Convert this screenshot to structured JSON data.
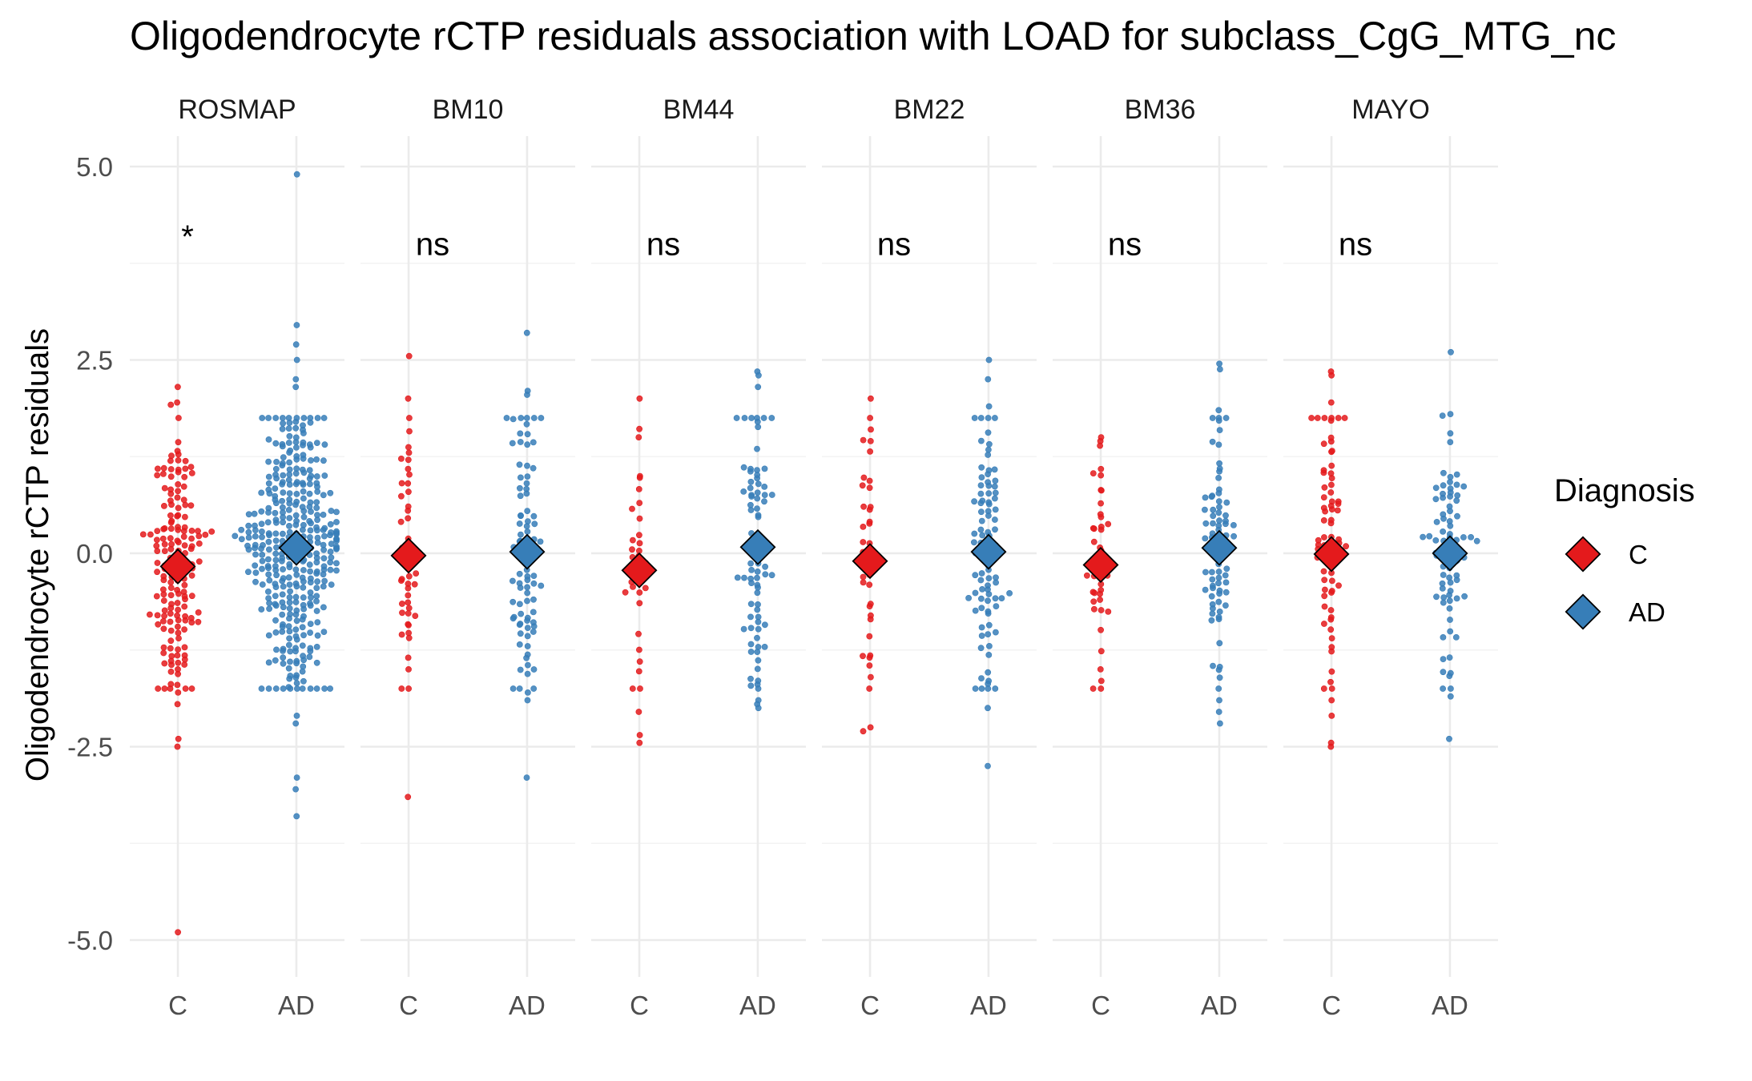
{
  "chart_data": {
    "type": "scatter",
    "title": "Oligodendrocyte rCTP residuals association with LOAD for subclass_CgG_MTG_nc",
    "ylabel": "Oligodendrocyte rCTP residuals",
    "xlabel": "",
    "ylim": [
      -5.4,
      5.4
    ],
    "y_ticks": [
      5.0,
      2.5,
      0.0,
      -2.5,
      -5.0
    ],
    "y_tick_labels": [
      "5.0",
      "2.5",
      "0.0",
      "-2.5",
      "-5.0"
    ],
    "categories": [
      "C",
      "AD"
    ],
    "grid": true,
    "colors": {
      "C": "#E41A1C",
      "AD": "#377EB8"
    },
    "legend": {
      "title": "Diagnosis",
      "placement": "right",
      "entries": [
        {
          "label": "C",
          "color": "#E41A1C"
        },
        {
          "label": "AD",
          "color": "#377EB8"
        }
      ]
    },
    "facets": [
      {
        "name": "ROSMAP",
        "significance": "*",
        "sig_y": 4.1,
        "groups": [
          {
            "group": "C",
            "mean": -0.17,
            "n": 170,
            "sd": 0.95,
            "extremes": [
              2.15,
              1.95,
              1.92,
              -1.8,
              -1.95,
              -2.4,
              -2.5,
              -4.9
            ]
          },
          {
            "group": "AD",
            "mean": 0.07,
            "n": 380,
            "sd": 0.95,
            "extremes": [
              4.9,
              2.95,
              2.7,
              2.5,
              2.25,
              2.15,
              -2.1,
              -2.2,
              -2.9,
              -3.05,
              -3.4
            ]
          }
        ]
      },
      {
        "name": "BM10",
        "significance": "ns",
        "sig_y": 4.0,
        "groups": [
          {
            "group": "C",
            "mean": -0.03,
            "n": 48,
            "sd": 0.9,
            "extremes": [
              2.55,
              2.0,
              1.3,
              -1.35,
              -1.5,
              -3.15
            ]
          },
          {
            "group": "AD",
            "mean": 0.02,
            "n": 90,
            "sd": 0.95,
            "extremes": [
              2.85,
              2.1,
              2.05,
              -1.8,
              -1.9,
              -2.9
            ]
          }
        ]
      },
      {
        "name": "BM44",
        "significance": "ns",
        "sig_y": 4.0,
        "groups": [
          {
            "group": "C",
            "mean": -0.22,
            "n": 40,
            "sd": 0.95,
            "extremes": [
              2.0,
              1.5,
              -1.75,
              -2.05,
              -2.35,
              -2.45
            ]
          },
          {
            "group": "AD",
            "mean": 0.08,
            "n": 85,
            "sd": 0.95,
            "extremes": [
              2.35,
              2.3,
              2.15,
              -1.9,
              -1.95,
              -2.0
            ]
          }
        ]
      },
      {
        "name": "BM22",
        "significance": "ns",
        "sig_y": 4.0,
        "groups": [
          {
            "group": "C",
            "mean": -0.1,
            "n": 42,
            "sd": 0.95,
            "extremes": [
              2.0,
              1.6,
              1.45,
              -1.45,
              -1.6,
              -2.25,
              -2.3
            ]
          },
          {
            "group": "AD",
            "mean": 0.02,
            "n": 95,
            "sd": 0.95,
            "extremes": [
              2.5,
              2.25,
              1.9,
              -1.65,
              -2.0,
              -2.75
            ]
          }
        ]
      },
      {
        "name": "BM36",
        "significance": "ns",
        "sig_y": 4.0,
        "groups": [
          {
            "group": "C",
            "mean": -0.15,
            "n": 42,
            "sd": 0.85,
            "extremes": [
              1.5,
              1.45,
              -1.5,
              -1.65
            ]
          },
          {
            "group": "AD",
            "mean": 0.07,
            "n": 80,
            "sd": 0.95,
            "extremes": [
              2.45,
              2.38,
              1.85,
              -1.9,
              -2.05,
              -2.2
            ]
          }
        ]
      },
      {
        "name": "MAYO",
        "significance": "ns",
        "sig_y": 4.0,
        "groups": [
          {
            "group": "C",
            "mean": -0.01,
            "n": 78,
            "sd": 1.05,
            "extremes": [
              2.35,
              2.3,
              1.95,
              -1.9,
              -2.1,
              -2.45,
              -2.5
            ]
          },
          {
            "group": "AD",
            "mean": 0.0,
            "n": 84,
            "sd": 0.85,
            "extremes": [
              2.6,
              1.8,
              1.78,
              -1.55,
              -1.85,
              -2.4
            ]
          }
        ]
      }
    ]
  }
}
